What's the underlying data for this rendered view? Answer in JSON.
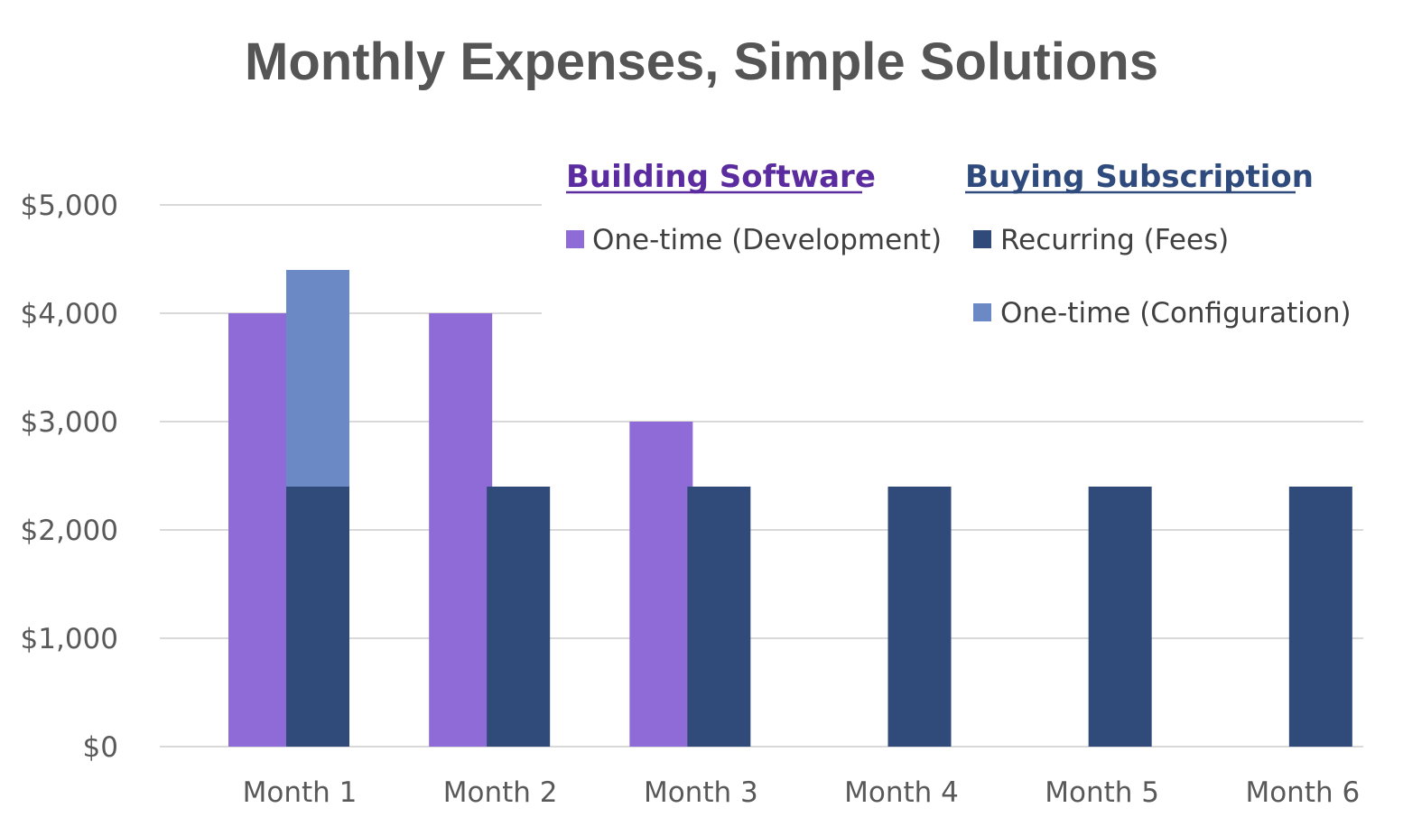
{
  "chart_data": {
    "type": "bar",
    "title": "Monthly Expenses, Simple Solutions",
    "categories": [
      "Month 1",
      "Month 2",
      "Month 3",
      "Month 4",
      "Month 5",
      "Month 6"
    ],
    "ylim": [
      0,
      5000
    ],
    "yticks": [
      0,
      1000,
      2000,
      3000,
      4000,
      5000
    ],
    "ytick_labels": [
      "$0",
      "$1,000",
      "$2,000",
      "$3,000",
      "$4,000",
      "$5,000"
    ],
    "grid": true,
    "legend_groups": [
      {
        "title": "Building Software",
        "color": "#5b2ca0",
        "entries": [
          "One-time (Development)"
        ]
      },
      {
        "title": "Buying Subscription",
        "color": "#2f4a7d",
        "entries": [
          "Recurring (Fees)",
          "One-time (Configuration)"
        ]
      }
    ],
    "series": [
      {
        "name": "One-time (Development)",
        "stack": "building",
        "color": "#8f6bd8",
        "values": [
          4000,
          4000,
          3000,
          0,
          0,
          0
        ]
      },
      {
        "name": "Recurring (Fees)",
        "stack": "buying",
        "color": "#304a7a",
        "values": [
          2400,
          2400,
          2400,
          2400,
          2400,
          2400
        ]
      },
      {
        "name": "One-time (Configuration)",
        "stack": "buying",
        "color": "#6b8ac5",
        "values": [
          2000,
          0,
          0,
          0,
          0,
          0
        ]
      }
    ]
  }
}
